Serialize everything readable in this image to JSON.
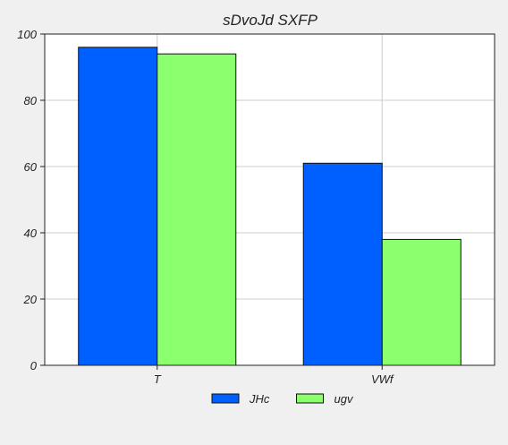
{
  "chart_data": {
    "type": "bar",
    "title": "sDvoJd SXFP",
    "xlabel": "",
    "ylabel": "",
    "categories": [
      "T",
      "VWf"
    ],
    "series": [
      {
        "name": "JHc",
        "values": [
          96,
          61
        ],
        "color": "#0060ff"
      },
      {
        "name": "ugv",
        "values": [
          94,
          38
        ],
        "color": "#8cff6e"
      }
    ],
    "ylim": [
      0,
      100
    ],
    "yticks": [
      0,
      20,
      40,
      60,
      80,
      100
    ],
    "grid": true,
    "legend": "bottom-center"
  },
  "colors": {
    "background": "#f0f0f0",
    "plot_background": "#ffffff",
    "grid": "#cccccc",
    "axis": "#222222"
  }
}
